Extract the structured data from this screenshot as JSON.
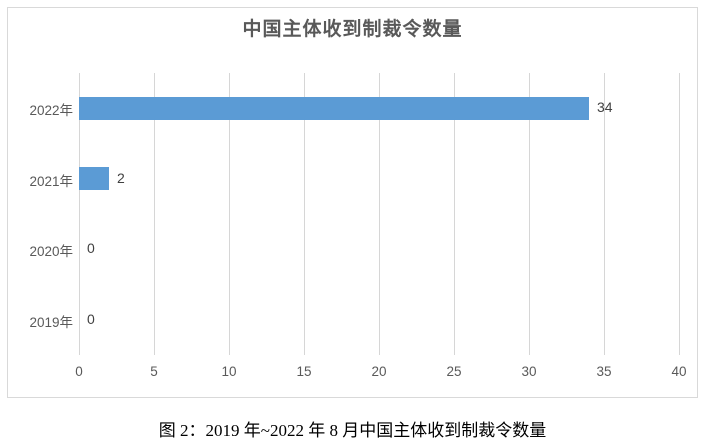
{
  "chart_data": {
    "type": "bar",
    "orientation": "horizontal",
    "title": "中国主体收到制裁令数量",
    "categories": [
      "2022年",
      "2021年",
      "2020年",
      "2019年"
    ],
    "values": [
      34,
      2,
      0,
      0
    ],
    "data_labels": [
      "34",
      "2",
      "0",
      "0"
    ],
    "xlabel": "",
    "ylabel": "",
    "xlim": [
      0,
      40
    ],
    "x_ticks": [
      0,
      5,
      10,
      15,
      20,
      25,
      30,
      35,
      40
    ],
    "grid": "vertical-gridlines",
    "legend": "none",
    "bar_color": "#5b9bd5"
  },
  "caption": "图 2：2019 年~2022 年 8 月中国主体收到制裁令数量",
  "colors": {
    "bar": "#5b9bd5",
    "gridline": "#d6d6d6",
    "frame_border": "#d9d9d9",
    "title_text": "#595959",
    "axis_text": "#595959",
    "data_label_text": "#404040",
    "caption_text": "#000000",
    "background": "#ffffff"
  }
}
